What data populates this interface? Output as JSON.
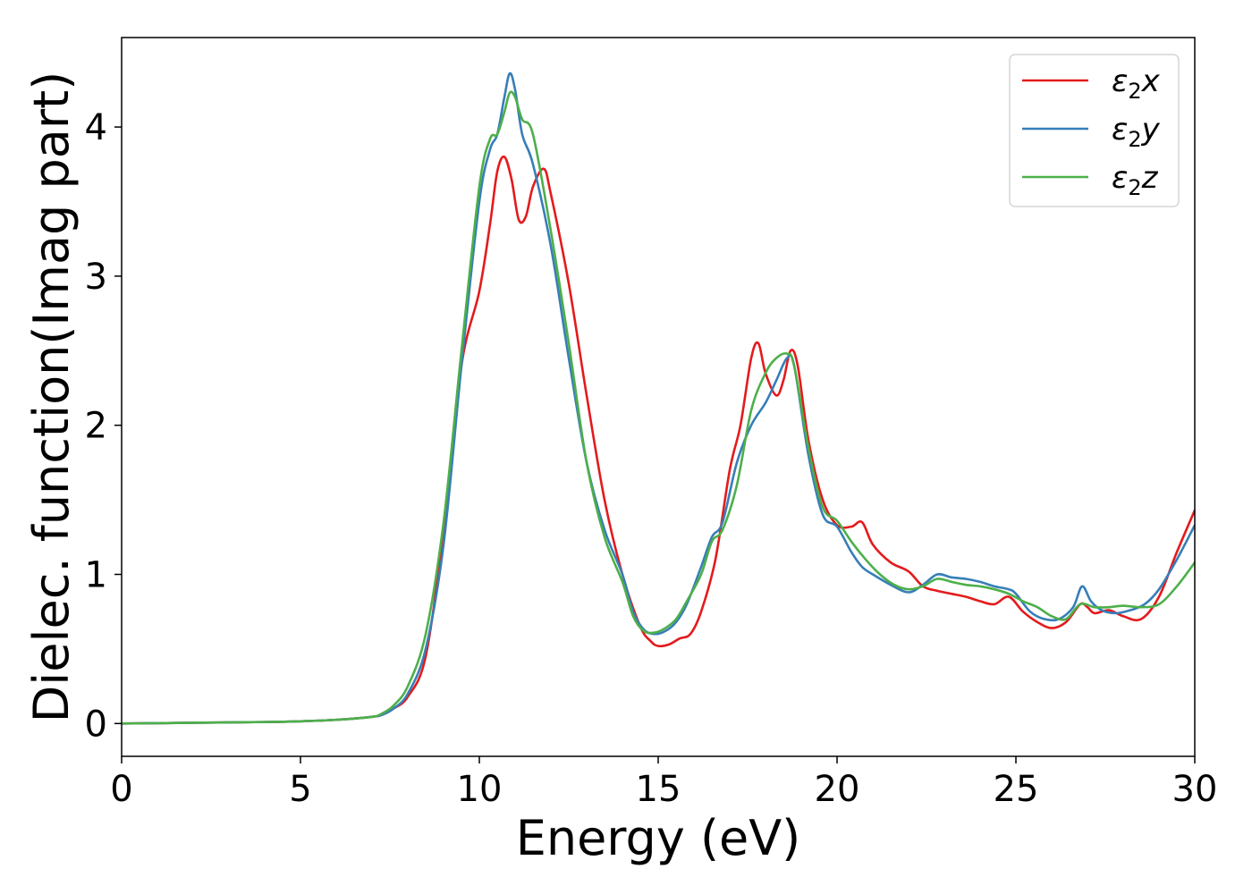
{
  "chart_data": {
    "type": "line",
    "title": "",
    "xlabel": "Energy (eV)",
    "ylabel": "Dielec. function(Imag part)",
    "xlim": [
      0,
      30
    ],
    "ylim": [
      -0.22,
      4.6
    ],
    "xticks": [
      0,
      5,
      10,
      15,
      20,
      25,
      30
    ],
    "yticks": [
      0,
      1,
      2,
      3,
      4
    ],
    "grid": false,
    "legend_position": "top-right",
    "series": [
      {
        "name": "ε2x",
        "legend_base": "ε",
        "legend_sub": "2",
        "legend_tail": "x",
        "color": "#e41a1c",
        "x": [
          0,
          2,
          4,
          5,
          6,
          7,
          7.3,
          7.6,
          8.0,
          8.5,
          9.0,
          9.5,
          10.0,
          10.3,
          10.5,
          10.7,
          10.9,
          11.1,
          11.3,
          11.5,
          11.8,
          12.0,
          12.5,
          13.0,
          13.5,
          14.0,
          14.5,
          14.8,
          15.0,
          15.3,
          15.6,
          15.9,
          16.2,
          16.6,
          17.0,
          17.3,
          17.6,
          17.8,
          18.0,
          18.3,
          18.5,
          18.7,
          18.9,
          19.2,
          19.6,
          20.0,
          20.4,
          20.7,
          21.0,
          21.5,
          22.0,
          22.4,
          22.8,
          23.2,
          23.6,
          24.0,
          24.4,
          24.8,
          25.2,
          25.6,
          26.0,
          26.4,
          26.8,
          27.0,
          27.2,
          27.6,
          28.0,
          28.5,
          29.0,
          29.5,
          30.0
        ],
        "y": [
          0.0,
          0.005,
          0.01,
          0.015,
          0.025,
          0.045,
          0.06,
          0.1,
          0.18,
          0.45,
          1.3,
          2.4,
          2.9,
          3.35,
          3.7,
          3.8,
          3.65,
          3.38,
          3.4,
          3.6,
          3.72,
          3.55,
          2.95,
          2.2,
          1.5,
          1.0,
          0.65,
          0.55,
          0.52,
          0.53,
          0.57,
          0.6,
          0.75,
          1.1,
          1.7,
          2.0,
          2.45,
          2.55,
          2.35,
          2.2,
          2.3,
          2.5,
          2.4,
          1.9,
          1.5,
          1.33,
          1.32,
          1.35,
          1.2,
          1.08,
          1.02,
          0.92,
          0.89,
          0.87,
          0.85,
          0.82,
          0.8,
          0.85,
          0.75,
          0.68,
          0.64,
          0.68,
          0.8,
          0.78,
          0.74,
          0.76,
          0.72,
          0.7,
          0.85,
          1.15,
          1.43
        ]
      },
      {
        "name": "ε2y",
        "legend_base": "ε",
        "legend_sub": "2",
        "legend_tail": "y",
        "color": "#377eb8",
        "x": [
          0,
          2,
          4,
          5,
          6,
          7,
          7.3,
          7.6,
          8.0,
          8.5,
          9.0,
          9.5,
          10.0,
          10.3,
          10.5,
          10.7,
          10.85,
          11.0,
          11.2,
          11.5,
          12.0,
          12.5,
          13.0,
          13.5,
          14.0,
          14.3,
          14.6,
          14.9,
          15.2,
          15.5,
          15.8,
          16.2,
          16.5,
          16.8,
          17.2,
          17.6,
          18.0,
          18.3,
          18.6,
          18.8,
          19.2,
          19.6,
          20.0,
          20.4,
          20.7,
          21.0,
          21.5,
          22.0,
          22.4,
          22.8,
          23.2,
          23.6,
          24.0,
          24.4,
          24.8,
          25.0,
          25.4,
          25.8,
          26.2,
          26.6,
          26.85,
          27.1,
          27.4,
          27.8,
          28.2,
          28.6,
          29.0,
          29.5,
          30.0
        ],
        "y": [
          0.0,
          0.005,
          0.01,
          0.015,
          0.025,
          0.045,
          0.06,
          0.1,
          0.2,
          0.5,
          1.2,
          2.4,
          3.5,
          3.85,
          3.95,
          4.2,
          4.36,
          4.25,
          3.95,
          3.75,
          3.2,
          2.45,
          1.75,
          1.3,
          1.0,
          0.75,
          0.63,
          0.6,
          0.62,
          0.68,
          0.8,
          1.05,
          1.25,
          1.35,
          1.75,
          2.0,
          2.15,
          2.3,
          2.45,
          2.4,
          1.8,
          1.4,
          1.32,
          1.15,
          1.05,
          1.0,
          0.93,
          0.88,
          0.93,
          1.0,
          0.98,
          0.97,
          0.95,
          0.92,
          0.9,
          0.87,
          0.75,
          0.7,
          0.7,
          0.78,
          0.92,
          0.82,
          0.76,
          0.74,
          0.76,
          0.8,
          0.9,
          1.1,
          1.33
        ]
      },
      {
        "name": "ε2z",
        "legend_base": "ε",
        "legend_sub": "2",
        "legend_tail": "z",
        "color": "#4daf4a",
        "x": [
          0,
          2,
          4,
          5,
          6,
          7,
          7.3,
          7.6,
          8.0,
          8.5,
          9.0,
          9.5,
          10.0,
          10.3,
          10.5,
          10.7,
          10.85,
          11.0,
          11.2,
          11.5,
          12.0,
          12.5,
          13.0,
          13.5,
          14.0,
          14.3,
          14.6,
          14.9,
          15.2,
          15.5,
          15.8,
          16.2,
          16.5,
          16.8,
          17.2,
          17.6,
          18.0,
          18.3,
          18.6,
          18.8,
          19.2,
          19.6,
          20.0,
          20.4,
          20.8,
          21.2,
          21.6,
          22.0,
          22.4,
          22.8,
          23.2,
          23.6,
          24.0,
          24.4,
          24.8,
          25.2,
          25.6,
          26.0,
          26.4,
          26.8,
          27.2,
          27.6,
          28.0,
          28.5,
          29.0,
          29.5,
          30.0
        ],
        "y": [
          0.0,
          0.005,
          0.01,
          0.015,
          0.025,
          0.045,
          0.07,
          0.12,
          0.25,
          0.6,
          1.35,
          2.5,
          3.6,
          3.92,
          3.95,
          4.1,
          4.23,
          4.2,
          4.05,
          3.95,
          3.3,
          2.55,
          1.75,
          1.25,
          0.95,
          0.72,
          0.62,
          0.61,
          0.64,
          0.7,
          0.82,
          1.0,
          1.22,
          1.3,
          1.6,
          2.1,
          2.35,
          2.45,
          2.48,
          2.4,
          1.85,
          1.45,
          1.36,
          1.22,
          1.1,
          1.0,
          0.93,
          0.9,
          0.92,
          0.97,
          0.95,
          0.93,
          0.92,
          0.9,
          0.87,
          0.82,
          0.78,
          0.72,
          0.7,
          0.8,
          0.78,
          0.78,
          0.79,
          0.78,
          0.8,
          0.92,
          1.08
        ]
      }
    ]
  }
}
